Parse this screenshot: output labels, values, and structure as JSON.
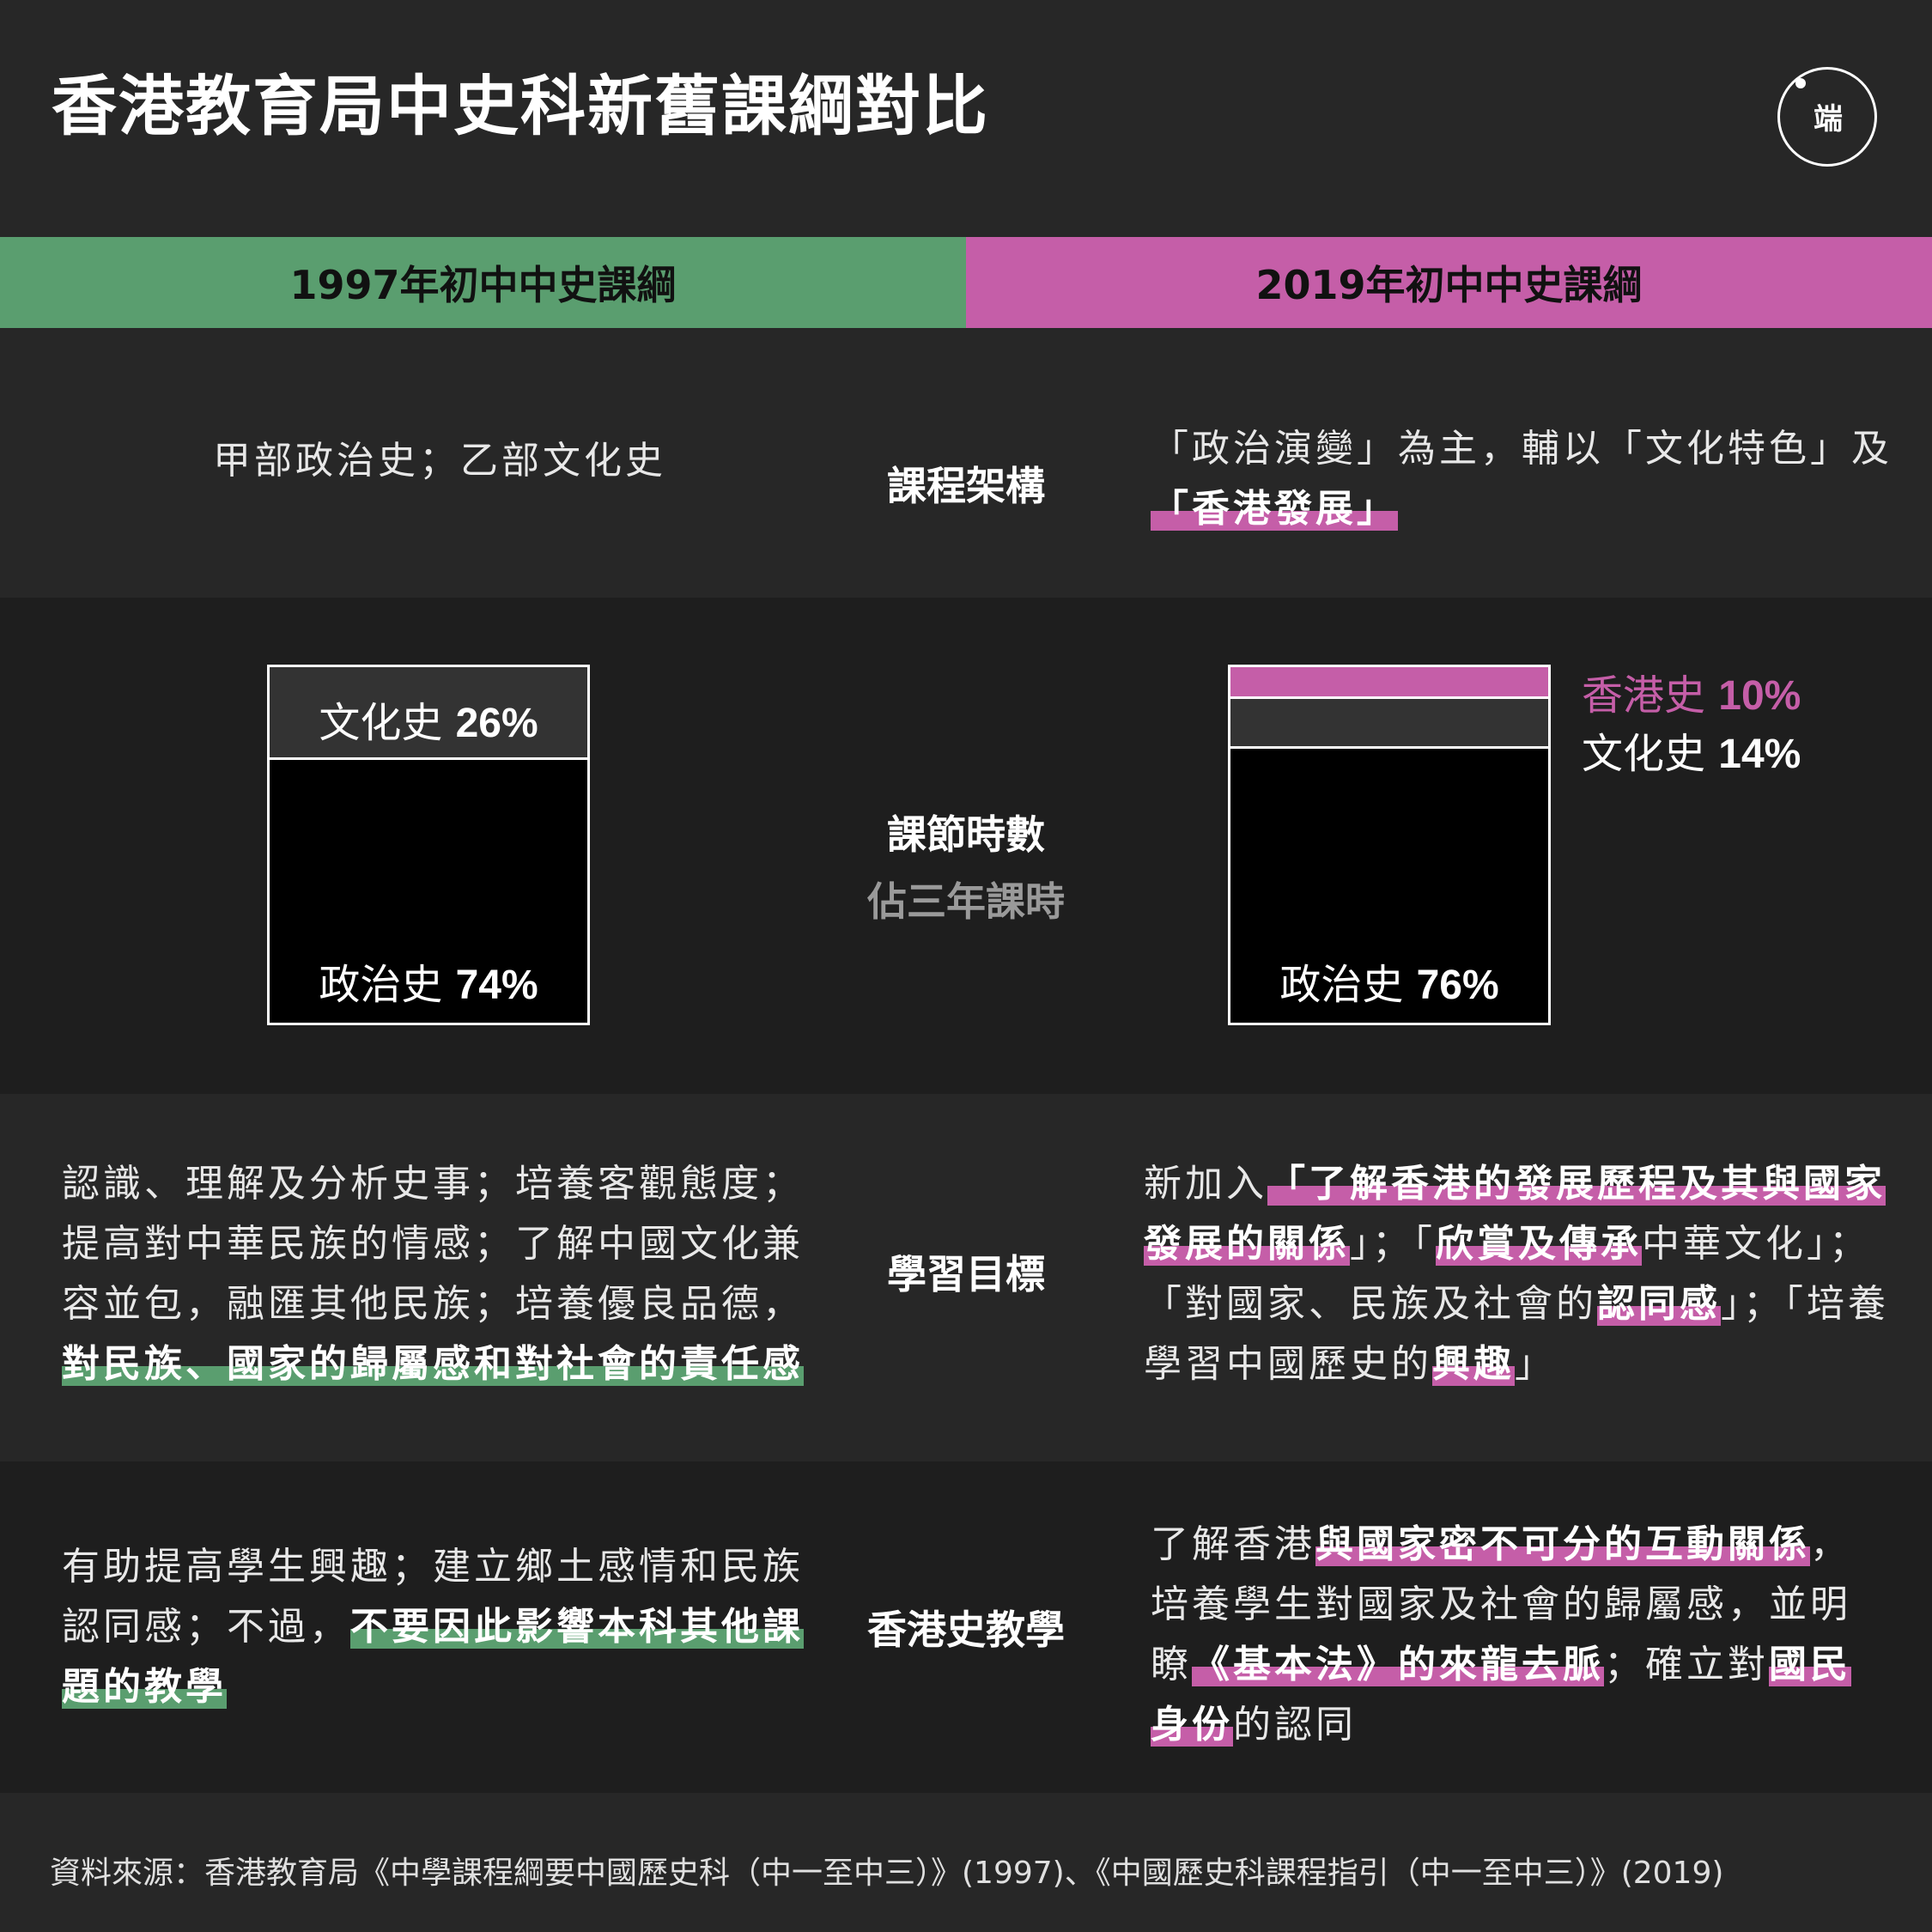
{
  "title": "香港教育局中史科新舊課綱對比",
  "logo_text": "端",
  "columns": {
    "left": "1997年初中中史課綱",
    "right": "2019年初中中史課綱"
  },
  "colors": {
    "left_accent": "#5a9e6f",
    "right_accent": "#c55ea8",
    "culture_seg": "#333333",
    "politics_seg": "#000000"
  },
  "sections": {
    "framework": {
      "label": "課程架構",
      "left": "甲部政治史；乙部文化史",
      "right_plain": "「政治演變」為主，輔以「文化特色」及",
      "right_hl": "「香港發展」"
    },
    "hours": {
      "label": "課節時數",
      "sublabel": "佔三年課時"
    },
    "goals": {
      "label": "學習目標",
      "left_plain": "認識、理解及分析史事；培養客觀態度；提高對中華民族的情感；了解中國文化兼容並包，融匯其他民族；培養優良品德，",
      "left_hl": "對民族、國家的歸屬感和對社會的責任感",
      "right_1": "新加入",
      "right_2": "「了解香港的發展歷程及其與國家發展的關係",
      "right_3": "」；「",
      "right_4": "欣賞及傳承",
      "right_5": "中華文化」；「對國家、民族及社會的",
      "right_6": "認同感",
      "right_7": "」；「培養學習中國歷史的",
      "right_8": "興趣",
      "right_9": "」"
    },
    "hk": {
      "label": "香港史教學",
      "left_plain": "有助提高學生興趣；建立鄉土感情和民族認同感；不過，",
      "left_hl": "不要因此影響本科其他課題的教學",
      "right_1": "了解香港",
      "right_2": "與國家密不可分的互動關係",
      "right_3": "，培養學生對國家及社會的歸屬感，並明瞭",
      "right_4": "《基本法》的來龍去脈",
      "right_5": "；確立對",
      "right_6": "國民身份",
      "right_7": "的認同"
    }
  },
  "chart_data": [
    {
      "type": "bar",
      "stacked": true,
      "category": "1997年初中中史課綱",
      "unit": "%",
      "series": [
        {
          "name": "政治史",
          "value": 74
        },
        {
          "name": "文化史",
          "value": 26
        }
      ],
      "labels": {
        "politics": "政治史",
        "politics_value": "74%",
        "culture": "文化史",
        "culture_value": "26%"
      }
    },
    {
      "type": "bar",
      "stacked": true,
      "category": "2019年初中中史課綱",
      "unit": "%",
      "series": [
        {
          "name": "政治史",
          "value": 76
        },
        {
          "name": "文化史",
          "value": 14
        },
        {
          "name": "香港史",
          "value": 10
        }
      ],
      "labels": {
        "politics": "政治史",
        "politics_value": "76%",
        "culture": "文化史",
        "culture_value": "14%",
        "hk": "香港史",
        "hk_value": "10%"
      }
    }
  ],
  "source": "資料來源：香港教育局《中學課程綱要中國歷史科（中一至中三）》(1997)、《中國歷史科課程指引（中一至中三）》(2019)"
}
